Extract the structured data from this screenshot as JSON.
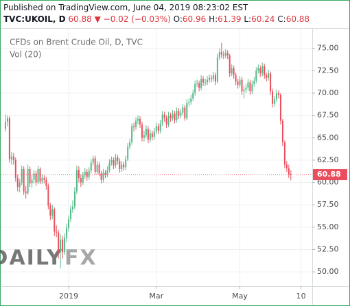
{
  "header": {
    "published": "Published on TradingView.com, June 04, 2019 08:23:02 EST",
    "symbol": "TVC:UKOIL, D",
    "change": "▼ −0.02 (−0.03%)",
    "ohlc_labels": [
      "O:",
      "H:",
      "L:",
      "C:"
    ]
  },
  "chart_data": {
    "type": "candlestick",
    "title": "CFDs on Brent Crude Oil, D, TVC",
    "subtitle": "Vol (20)",
    "watermark": [
      "DAILY",
      "FX"
    ],
    "up_color": "#53b987",
    "down_color": "#eb4d5c",
    "open": [
      66.0,
      66.8,
      67.2,
      62.6,
      62.9,
      62.5,
      60.5,
      59.5,
      60.0,
      61.5,
      59.0,
      58.8,
      61.5,
      59.9,
      60.3,
      61.0,
      60.0,
      61.5,
      60.1,
      60.5,
      60.3,
      59.6,
      57.4,
      56.3,
      57.0,
      54.5,
      54.4,
      52.2,
      53.6,
      52.2,
      53.8,
      54.9,
      55.9,
      57.0,
      57.3,
      59.0,
      61.4,
      60.5,
      60.0,
      60.8,
      61.2,
      60.6,
      61.3,
      62.2,
      62.7,
      61.2,
      62.0,
      61.0,
      60.3,
      61.1,
      60.9,
      61.4,
      62.2,
      62.5,
      61.9,
      62.8,
      62.4,
      61.5,
      62.0,
      61.7,
      62.6,
      64.0,
      64.5,
      66.3,
      66.2,
      66.9,
      67.1,
      66.5,
      65.0,
      65.3,
      66.0,
      64.8,
      65.5,
      65.1,
      65.7,
      66.3,
      65.8,
      66.6,
      67.6,
      67.2,
      66.5,
      67.5,
      67.2,
      67.7,
      67.0,
      68.0,
      67.5,
      67.8,
      68.4,
      67.2,
      68.9,
      69.0,
      69.4,
      70.0,
      71.0,
      71.1,
      70.6,
      71.6,
      71.2,
      71.2,
      71.5,
      71.7,
      71.6,
      72.0,
      71.3,
      74.0,
      74.6,
      74.3,
      74.2,
      74.5,
      74.2,
      72.2,
      72.8,
      72.0,
      71.3,
      70.9,
      71.5,
      70.2,
      70.4,
      70.6,
      71.2,
      70.2,
      71.0,
      71.4,
      72.5,
      72.8,
      72.2,
      73.0,
      72.0,
      71.7,
      72.2,
      70.2,
      68.8,
      69.3,
      70.0,
      69.8,
      66.9,
      64.5,
      62.0,
      61.6,
      60.96
    ],
    "high": [
      67.6,
      67.5,
      67.4,
      63.4,
      63.3,
      62.8,
      60.9,
      60.4,
      61.9,
      61.8,
      59.6,
      62.0,
      61.8,
      60.8,
      61.4,
      61.3,
      61.9,
      61.7,
      60.9,
      60.8,
      60.6,
      59.9,
      57.7,
      57.5,
      57.2,
      55.2,
      54.7,
      54.2,
      54.0,
      54.3,
      55.4,
      56.3,
      57.4,
      58.0,
      59.5,
      61.9,
      61.8,
      60.9,
      61.2,
      61.6,
      61.5,
      61.7,
      62.6,
      63.0,
      63.0,
      62.4,
      62.3,
      61.3,
      61.5,
      61.4,
      61.8,
      62.6,
      62.9,
      62.8,
      63.2,
      63.1,
      62.7,
      62.4,
      62.3,
      63.0,
      64.4,
      64.9,
      66.6,
      66.7,
      67.3,
      67.5,
      67.4,
      66.8,
      65.8,
      66.4,
      66.3,
      65.9,
      65.8,
      66.1,
      66.7,
      66.6,
      67.0,
      68.0,
      67.9,
      67.5,
      67.9,
      67.8,
      68.1,
      68.0,
      68.4,
      68.3,
      68.2,
      68.8,
      68.7,
      69.3,
      69.4,
      69.8,
      70.4,
      71.4,
      71.5,
      71.4,
      72.0,
      71.9,
      71.6,
      71.9,
      72.1,
      72.0,
      72.4,
      72.3,
      74.4,
      75.0,
      75.6,
      74.7,
      74.9,
      74.8,
      74.4,
      73.2,
      73.1,
      72.3,
      71.6,
      71.9,
      71.8,
      70.8,
      71.0,
      71.6,
      71.5,
      71.4,
      71.8,
      72.9,
      73.2,
      73.1,
      73.4,
      73.3,
      72.3,
      72.6,
      72.4,
      70.5,
      69.7,
      70.4,
      70.3,
      70.0,
      67.1,
      64.7,
      62.4,
      62.0,
      61.39
    ],
    "low": [
      65.7,
      66.3,
      62.2,
      62.0,
      62.0,
      60.1,
      59.0,
      58.9,
      59.7,
      58.6,
      58.2,
      58.6,
      59.5,
      59.4,
      59.9,
      59.6,
      59.8,
      59.8,
      59.8,
      59.9,
      59.2,
      57.0,
      55.8,
      55.9,
      54.0,
      53.9,
      51.5,
      50.4,
      51.5,
      51.9,
      53.3,
      54.5,
      55.6,
      56.6,
      57.0,
      58.7,
      60.0,
      59.5,
      59.7,
      60.4,
      60.2,
      60.3,
      61.0,
      61.9,
      60.9,
      60.9,
      60.7,
      59.9,
      60.0,
      60.5,
      60.6,
      61.1,
      61.9,
      61.5,
      61.6,
      62.0,
      61.1,
      61.2,
      61.3,
      61.4,
      62.4,
      63.7,
      64.2,
      65.7,
      65.9,
      66.5,
      66.1,
      64.6,
      64.6,
      65.0,
      64.4,
      64.5,
      64.7,
      64.8,
      65.4,
      65.4,
      65.5,
      66.3,
      66.8,
      66.1,
      66.2,
      66.8,
      66.9,
      66.6,
      66.7,
      67.1,
      67.2,
      67.5,
      66.9,
      67.0,
      68.5,
      68.7,
      69.1,
      69.7,
      70.7,
      70.2,
      70.3,
      70.8,
      70.8,
      70.9,
      71.2,
      71.2,
      71.3,
      70.9,
      71.1,
      73.7,
      73.9,
      73.8,
      73.9,
      73.8,
      71.8,
      71.9,
      71.6,
      70.9,
      70.5,
      70.6,
      69.8,
      69.4,
      70.0,
      70.3,
      69.8,
      69.9,
      70.7,
      71.1,
      72.2,
      71.8,
      71.9,
      71.6,
      71.3,
      71.4,
      69.8,
      68.4,
      68.5,
      69.0,
      69.4,
      66.5,
      64.1,
      61.6,
      61.2,
      60.5,
      60.24
    ],
    "close": [
      66.8,
      67.2,
      62.6,
      62.9,
      62.5,
      60.5,
      59.5,
      60.0,
      61.5,
      59.0,
      58.8,
      61.5,
      59.9,
      60.3,
      61.0,
      60.0,
      61.5,
      60.1,
      60.5,
      60.3,
      59.6,
      57.4,
      56.3,
      57.0,
      54.5,
      54.4,
      52.2,
      53.6,
      52.2,
      53.8,
      54.9,
      55.9,
      57.0,
      57.3,
      59.0,
      61.4,
      60.5,
      60.0,
      60.8,
      61.2,
      60.6,
      61.3,
      62.2,
      62.7,
      61.2,
      62.0,
      61.0,
      60.3,
      61.1,
      60.9,
      61.4,
      62.2,
      62.5,
      61.9,
      62.8,
      62.4,
      61.5,
      62.0,
      61.7,
      62.6,
      64.0,
      64.5,
      66.3,
      66.2,
      66.9,
      67.1,
      66.5,
      65.0,
      65.3,
      66.0,
      64.8,
      65.5,
      65.1,
      65.7,
      66.3,
      65.8,
      66.6,
      67.6,
      67.2,
      66.5,
      67.5,
      67.2,
      67.7,
      67.0,
      68.0,
      67.5,
      67.8,
      68.4,
      67.2,
      68.9,
      69.0,
      69.4,
      70.0,
      71.0,
      71.1,
      70.6,
      71.6,
      71.2,
      71.2,
      71.5,
      71.7,
      71.6,
      72.0,
      71.3,
      74.0,
      74.6,
      74.3,
      74.2,
      74.5,
      74.2,
      72.2,
      72.8,
      72.0,
      71.3,
      70.9,
      71.5,
      70.2,
      70.4,
      70.6,
      71.2,
      70.2,
      71.0,
      71.4,
      72.5,
      72.8,
      72.2,
      73.0,
      72.0,
      71.7,
      72.2,
      70.2,
      68.8,
      69.3,
      70.0,
      69.8,
      66.9,
      64.5,
      62.0,
      61.6,
      60.9,
      60.88
    ],
    "xlim": [
      -2,
      150.5
    ],
    "xticks": [
      {
        "value": 31,
        "label": "2019"
      },
      {
        "value": 74,
        "label": "Mar"
      },
      {
        "value": 115,
        "label": "May"
      },
      {
        "value": 145,
        "label": "10"
      }
    ],
    "ylim": [
      48.4,
      77.2
    ],
    "yticks": [
      {
        "value": 50,
        "label": "50.00"
      },
      {
        "value": 52.5,
        "label": "52.50"
      },
      {
        "value": 55,
        "label": "55.00"
      },
      {
        "value": 57.5,
        "label": "57.50"
      },
      {
        "value": 60,
        "label": "60.00"
      },
      {
        "value": 62.5,
        "label": "62.50"
      },
      {
        "value": 65,
        "label": "65.00"
      },
      {
        "value": 67.5,
        "label": "67.50"
      },
      {
        "value": 70,
        "label": "70.00"
      },
      {
        "value": 72.5,
        "label": "72.50"
      },
      {
        "value": 75,
        "label": "75.00"
      }
    ],
    "grid": true
  }
}
